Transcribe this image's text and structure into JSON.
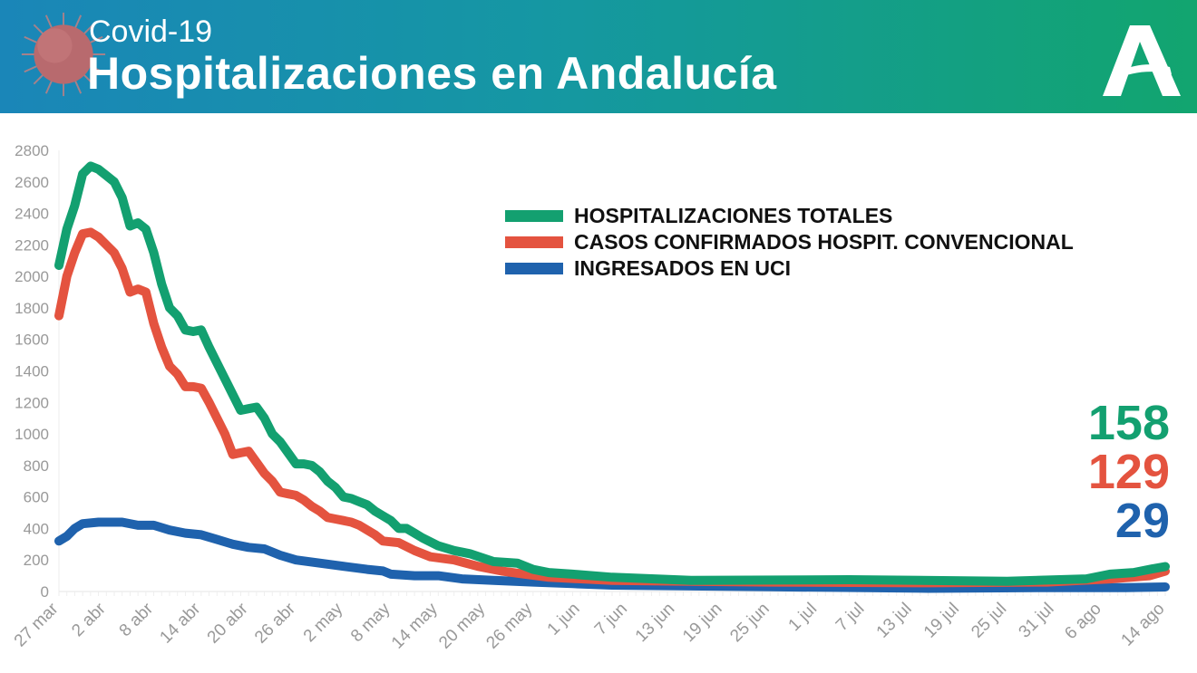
{
  "header": {
    "subtitle": "Covid-19",
    "title": "Hospitalizaciones en Andalucía",
    "logo_text": "A"
  },
  "colors": {
    "green": "#13a070",
    "red": "#e4533f",
    "blue": "#1f62ad"
  },
  "latest": {
    "total": "158",
    "convencional": "129",
    "uci": "29"
  },
  "chart_data": {
    "type": "line",
    "title": "Hospitalizaciones en Andalucía",
    "xlabel": "",
    "ylabel": "",
    "ylim": [
      0,
      2800
    ],
    "yticks": [
      0,
      200,
      400,
      600,
      800,
      1000,
      1200,
      1400,
      1600,
      1800,
      2000,
      2200,
      2400,
      2600,
      2800
    ],
    "x_unit": "days since 27 mar",
    "xlim": [
      0,
      140
    ],
    "xticks": [
      {
        "d": 0,
        "label": "27 mar"
      },
      {
        "d": 6,
        "label": "2 abr"
      },
      {
        "d": 12,
        "label": "8 abr"
      },
      {
        "d": 18,
        "label": "14 abr"
      },
      {
        "d": 24,
        "label": "20 abr"
      },
      {
        "d": 30,
        "label": "26 abr"
      },
      {
        "d": 36,
        "label": "2 may"
      },
      {
        "d": 42,
        "label": "8 may"
      },
      {
        "d": 48,
        "label": "14 may"
      },
      {
        "d": 54,
        "label": "20 may"
      },
      {
        "d": 60,
        "label": "26 may"
      },
      {
        "d": 66,
        "label": "1 jun"
      },
      {
        "d": 72,
        "label": "7 jun"
      },
      {
        "d": 78,
        "label": "13 jun"
      },
      {
        "d": 84,
        "label": "19 jun"
      },
      {
        "d": 90,
        "label": "25 jun"
      },
      {
        "d": 96,
        "label": "1 jul"
      },
      {
        "d": 102,
        "label": "7 jul"
      },
      {
        "d": 108,
        "label": "13 jul"
      },
      {
        "d": 114,
        "label": "19 jul"
      },
      {
        "d": 120,
        "label": "25 jul"
      },
      {
        "d": 126,
        "label": "31 jul"
      },
      {
        "d": 132,
        "label": "6 ago"
      },
      {
        "d": 140,
        "label": "14 ago"
      }
    ],
    "legend_position": "top-right",
    "series": [
      {
        "name": "HOSPITALIZACIONES TOTALES",
        "color": "#13a070",
        "points": [
          [
            0,
            2070
          ],
          [
            1,
            2300
          ],
          [
            2,
            2450
          ],
          [
            3,
            2650
          ],
          [
            4,
            2700
          ],
          [
            5,
            2680
          ],
          [
            6,
            2640
          ],
          [
            7,
            2600
          ],
          [
            8,
            2500
          ],
          [
            9,
            2320
          ],
          [
            10,
            2340
          ],
          [
            11,
            2300
          ],
          [
            12,
            2150
          ],
          [
            13,
            1950
          ],
          [
            14,
            1800
          ],
          [
            15,
            1750
          ],
          [
            16,
            1660
          ],
          [
            17,
            1650
          ],
          [
            18,
            1660
          ],
          [
            19,
            1550
          ],
          [
            20,
            1450
          ],
          [
            21,
            1350
          ],
          [
            22,
            1250
          ],
          [
            23,
            1150
          ],
          [
            24,
            1160
          ],
          [
            25,
            1170
          ],
          [
            26,
            1100
          ],
          [
            27,
            1000
          ],
          [
            28,
            950
          ],
          [
            29,
            880
          ],
          [
            30,
            810
          ],
          [
            31,
            810
          ],
          [
            32,
            800
          ],
          [
            33,
            760
          ],
          [
            34,
            700
          ],
          [
            35,
            660
          ],
          [
            36,
            600
          ],
          [
            37,
            590
          ],
          [
            38,
            570
          ],
          [
            39,
            550
          ],
          [
            40,
            510
          ],
          [
            41,
            480
          ],
          [
            42,
            450
          ],
          [
            43,
            400
          ],
          [
            44,
            400
          ],
          [
            45,
            370
          ],
          [
            46,
            340
          ],
          [
            48,
            290
          ],
          [
            50,
            260
          ],
          [
            52,
            240
          ],
          [
            55,
            190
          ],
          [
            58,
            180
          ],
          [
            60,
            140
          ],
          [
            62,
            120
          ],
          [
            65,
            110
          ],
          [
            70,
            90
          ],
          [
            80,
            70
          ],
          [
            100,
            75
          ],
          [
            120,
            65
          ],
          [
            130,
            80
          ],
          [
            133,
            110
          ],
          [
            136,
            120
          ],
          [
            138,
            140
          ],
          [
            140,
            158
          ]
        ]
      },
      {
        "name": "CASOS CONFIRMADOS HOSPIT. CONVENCIONAL",
        "color": "#e4533f",
        "points": [
          [
            0,
            1750
          ],
          [
            1,
            2000
          ],
          [
            2,
            2150
          ],
          [
            3,
            2270
          ],
          [
            4,
            2280
          ],
          [
            5,
            2250
          ],
          [
            6,
            2200
          ],
          [
            7,
            2150
          ],
          [
            8,
            2050
          ],
          [
            9,
            1900
          ],
          [
            10,
            1920
          ],
          [
            11,
            1900
          ],
          [
            12,
            1700
          ],
          [
            13,
            1550
          ],
          [
            14,
            1430
          ],
          [
            15,
            1380
          ],
          [
            16,
            1300
          ],
          [
            17,
            1300
          ],
          [
            18,
            1290
          ],
          [
            19,
            1200
          ],
          [
            20,
            1100
          ],
          [
            21,
            1000
          ],
          [
            22,
            870
          ],
          [
            23,
            880
          ],
          [
            24,
            890
          ],
          [
            25,
            820
          ],
          [
            26,
            750
          ],
          [
            27,
            700
          ],
          [
            28,
            630
          ],
          [
            29,
            620
          ],
          [
            30,
            610
          ],
          [
            31,
            580
          ],
          [
            32,
            540
          ],
          [
            33,
            510
          ],
          [
            34,
            470
          ],
          [
            35,
            460
          ],
          [
            36,
            450
          ],
          [
            37,
            440
          ],
          [
            38,
            420
          ],
          [
            40,
            360
          ],
          [
            41,
            320
          ],
          [
            43,
            310
          ],
          [
            45,
            260
          ],
          [
            47,
            220
          ],
          [
            50,
            200
          ],
          [
            53,
            160
          ],
          [
            56,
            130
          ],
          [
            59,
            110
          ],
          [
            62,
            90
          ],
          [
            70,
            70
          ],
          [
            90,
            60
          ],
          [
            110,
            55
          ],
          [
            125,
            60
          ],
          [
            133,
            80
          ],
          [
            138,
            100
          ],
          [
            140,
            129
          ]
        ]
      },
      {
        "name": "INGRESADOS EN UCI",
        "color": "#1f62ad",
        "points": [
          [
            0,
            320
          ],
          [
            1,
            350
          ],
          [
            2,
            400
          ],
          [
            3,
            430
          ],
          [
            5,
            440
          ],
          [
            8,
            440
          ],
          [
            10,
            420
          ],
          [
            12,
            420
          ],
          [
            14,
            390
          ],
          [
            16,
            370
          ],
          [
            18,
            360
          ],
          [
            20,
            330
          ],
          [
            22,
            300
          ],
          [
            24,
            280
          ],
          [
            26,
            270
          ],
          [
            28,
            230
          ],
          [
            30,
            200
          ],
          [
            33,
            180
          ],
          [
            36,
            160
          ],
          [
            39,
            140
          ],
          [
            41,
            130
          ],
          [
            42,
            110
          ],
          [
            45,
            100
          ],
          [
            48,
            100
          ],
          [
            51,
            80
          ],
          [
            55,
            70
          ],
          [
            60,
            60
          ],
          [
            65,
            50
          ],
          [
            70,
            40
          ],
          [
            90,
            30
          ],
          [
            110,
            20
          ],
          [
            125,
            25
          ],
          [
            135,
            25
          ],
          [
            140,
            29
          ]
        ]
      }
    ]
  }
}
